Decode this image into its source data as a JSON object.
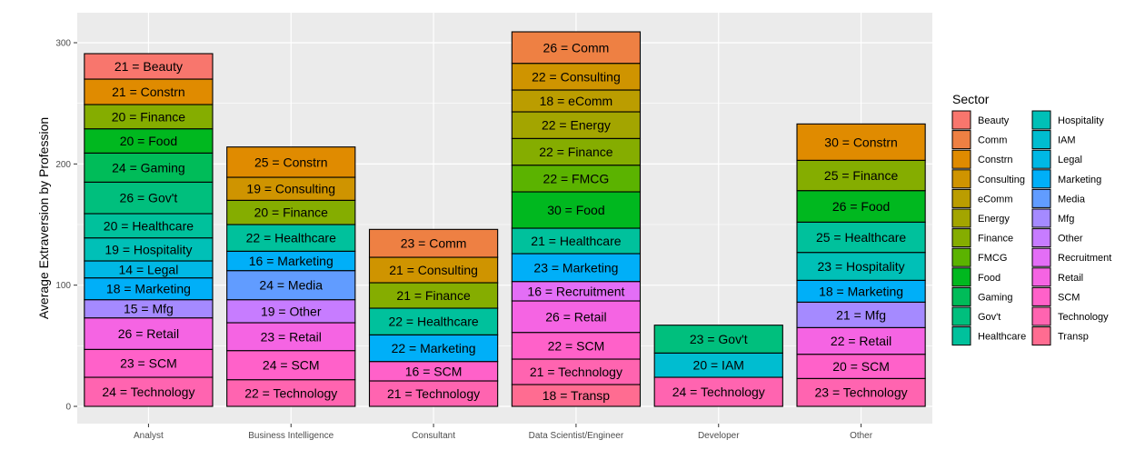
{
  "chart_data": {
    "type": "bar",
    "stacked": true,
    "ylabel": "Average Extraversion by Profession",
    "xlabel": "",
    "ylim": [
      0,
      318
    ],
    "yticks": [
      0,
      100,
      200,
      300
    ],
    "grid": true,
    "legend": {
      "title": "Sector",
      "position": "right",
      "columns": 2
    },
    "categories": [
      "Analyst",
      "Business Intelligence",
      "Consultant",
      "Data Scientist/Engineer",
      "Developer",
      "Other"
    ],
    "sectors": [
      {
        "name": "Beauty",
        "color": "#F8766D"
      },
      {
        "name": "Comm",
        "color": "#EE8043"
      },
      {
        "name": "Constrn",
        "color": "#E08B00"
      },
      {
        "name": "Consulting",
        "color": "#CF9400"
      },
      {
        "name": "eComm",
        "color": "#BB9D00"
      },
      {
        "name": "Energy",
        "color": "#A3A500"
      },
      {
        "name": "Finance",
        "color": "#85AD00"
      },
      {
        "name": "FMCG",
        "color": "#5BB300"
      },
      {
        "name": "Food",
        "color": "#00B81F"
      },
      {
        "name": "Gaming",
        "color": "#00BC59"
      },
      {
        "name": "Gov't",
        "color": "#00BF7D"
      },
      {
        "name": "Healthcare",
        "color": "#00C19C"
      },
      {
        "name": "Hospitality",
        "color": "#00C0B7"
      },
      {
        "name": "IAM",
        "color": "#00BDD0"
      },
      {
        "name": "Legal",
        "color": "#00B8E5"
      },
      {
        "name": "Marketing",
        "color": "#00AFF8"
      },
      {
        "name": "Media",
        "color": "#619CFF"
      },
      {
        "name": "Mfg",
        "color": "#A58AFF"
      },
      {
        "name": "Other",
        "color": "#C77CFF"
      },
      {
        "name": "Recruitment",
        "color": "#E36EF6"
      },
      {
        "name": "Retail",
        "color": "#F564E3"
      },
      {
        "name": "SCM",
        "color": "#FF61C9"
      },
      {
        "name": "Technology",
        "color": "#FF64B0"
      },
      {
        "name": "Transp",
        "color": "#FF6C91"
      }
    ],
    "stacks": [
      {
        "category": "Analyst",
        "segments": [
          {
            "sector": "Technology",
            "value": 24,
            "label": "24 = Technology"
          },
          {
            "sector": "SCM",
            "value": 23,
            "label": "23 = SCM"
          },
          {
            "sector": "Retail",
            "value": 26,
            "label": "26 = Retail"
          },
          {
            "sector": "Mfg",
            "value": 15,
            "label": "15 = Mfg"
          },
          {
            "sector": "Marketing",
            "value": 18,
            "label": "18 = Marketing"
          },
          {
            "sector": "Legal",
            "value": 14,
            "label": "14 = Legal"
          },
          {
            "sector": "Hospitality",
            "value": 19,
            "label": "19 = Hospitality"
          },
          {
            "sector": "Healthcare",
            "value": 20,
            "label": "20 = Healthcare"
          },
          {
            "sector": "Gov't",
            "value": 26,
            "label": "26 = Gov't"
          },
          {
            "sector": "Gaming",
            "value": 24,
            "label": "24 = Gaming"
          },
          {
            "sector": "Food",
            "value": 20,
            "label": "20 = Food"
          },
          {
            "sector": "Finance",
            "value": 20,
            "label": "20 = Finance"
          },
          {
            "sector": "Constrn",
            "value": 21,
            "label": "21 = Constrn"
          },
          {
            "sector": "Beauty",
            "value": 21,
            "label": "21 = Beauty"
          }
        ]
      },
      {
        "category": "Business Intelligence",
        "segments": [
          {
            "sector": "Technology",
            "value": 22,
            "label": "22 = Technology"
          },
          {
            "sector": "SCM",
            "value": 24,
            "label": "24 = SCM"
          },
          {
            "sector": "Retail",
            "value": 23,
            "label": "23 = Retail"
          },
          {
            "sector": "Other",
            "value": 19,
            "label": "19 = Other"
          },
          {
            "sector": "Media",
            "value": 24,
            "label": "24 = Media"
          },
          {
            "sector": "Marketing",
            "value": 16,
            "label": "16 = Marketing"
          },
          {
            "sector": "Healthcare",
            "value": 22,
            "label": "22 = Healthcare"
          },
          {
            "sector": "Finance",
            "value": 20,
            "label": "20 = Finance"
          },
          {
            "sector": "Consulting",
            "value": 19,
            "label": "19 = Consulting"
          },
          {
            "sector": "Constrn",
            "value": 25,
            "label": "25 = Constrn"
          }
        ]
      },
      {
        "category": "Consultant",
        "segments": [
          {
            "sector": "Technology",
            "value": 21,
            "label": "21 = Technology"
          },
          {
            "sector": "SCM",
            "value": 16,
            "label": "16 = SCM"
          },
          {
            "sector": "Marketing",
            "value": 22,
            "label": "22 = Marketing"
          },
          {
            "sector": "Healthcare",
            "value": 22,
            "label": "22 = Healthcare"
          },
          {
            "sector": "Finance",
            "value": 21,
            "label": "21 = Finance"
          },
          {
            "sector": "Consulting",
            "value": 21,
            "label": "21 = Consulting"
          },
          {
            "sector": "Comm",
            "value": 23,
            "label": "23 = Comm"
          }
        ]
      },
      {
        "category": "Data Scientist/Engineer",
        "segments": [
          {
            "sector": "Transp",
            "value": 18,
            "label": "18 = Transp"
          },
          {
            "sector": "Technology",
            "value": 21,
            "label": "21 = Technology"
          },
          {
            "sector": "SCM",
            "value": 22,
            "label": "22 = SCM"
          },
          {
            "sector": "Retail",
            "value": 26,
            "label": "26 = Retail"
          },
          {
            "sector": "Recruitment",
            "value": 16,
            "label": "16 = Recruitment"
          },
          {
            "sector": "Marketing",
            "value": 23,
            "label": "23 = Marketing"
          },
          {
            "sector": "Healthcare",
            "value": 21,
            "label": "21 = Healthcare"
          },
          {
            "sector": "Food",
            "value": 30,
            "label": "30 = Food"
          },
          {
            "sector": "FMCG",
            "value": 22,
            "label": "22 = FMCG"
          },
          {
            "sector": "Finance",
            "value": 22,
            "label": "22 = Finance"
          },
          {
            "sector": "Energy",
            "value": 22,
            "label": "22 = Energy"
          },
          {
            "sector": "eComm",
            "value": 18,
            "label": "18 = eComm"
          },
          {
            "sector": "Consulting",
            "value": 22,
            "label": "22 = Consulting"
          },
          {
            "sector": "Comm",
            "value": 26,
            "label": "26 = Comm"
          }
        ]
      },
      {
        "category": "Developer",
        "segments": [
          {
            "sector": "Technology",
            "value": 24,
            "label": "24 = Technology"
          },
          {
            "sector": "IAM",
            "value": 20,
            "label": "20 = IAM"
          },
          {
            "sector": "Gov't",
            "value": 23,
            "label": "23 = Gov't"
          }
        ]
      },
      {
        "category": "Other",
        "segments": [
          {
            "sector": "Technology",
            "value": 23,
            "label": "23 = Technology"
          },
          {
            "sector": "SCM",
            "value": 20,
            "label": "20 = SCM"
          },
          {
            "sector": "Retail",
            "value": 22,
            "label": "22 = Retail"
          },
          {
            "sector": "Mfg",
            "value": 21,
            "label": "21 = Mfg"
          },
          {
            "sector": "Marketing",
            "value": 18,
            "label": "18 = Marketing"
          },
          {
            "sector": "Hospitality",
            "value": 23,
            "label": "23 = Hospitality"
          },
          {
            "sector": "Healthcare",
            "value": 25,
            "label": "25 = Healthcare"
          },
          {
            "sector": "Food",
            "value": 26,
            "label": "26 = Food"
          },
          {
            "sector": "Finance",
            "value": 25,
            "label": "25 = Finance"
          },
          {
            "sector": "Constrn",
            "value": 30,
            "label": "30 = Constrn"
          }
        ]
      }
    ]
  }
}
